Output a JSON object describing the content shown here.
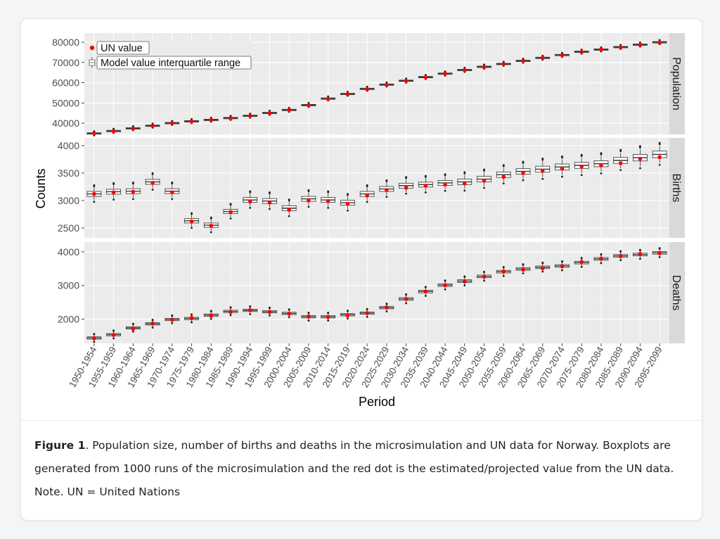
{
  "caption": {
    "label": "Figure 1",
    "text": ". Population size, number of births and deaths in the microsimulation and UN data for Norway. Boxplots are generated from 1000 runs of the microsimulation and the red dot is the estimated/projected value from the UN data. Note. UN = United Nations"
  },
  "colors": {
    "panel": "#ebebeb",
    "grid": "#ffffff",
    "strip": "#d9d9d9",
    "dot": "#ff0000",
    "box": "#333333",
    "outlier": "#222222"
  },
  "chart_data": {
    "type": "boxplot",
    "xlabel": "Period",
    "ylabel": "Counts",
    "legend": {
      "placement": "top-left",
      "items": [
        "UN value",
        "Model value interquartile range"
      ]
    },
    "categories": [
      "1950-1954",
      "1955-1959",
      "1960-1964",
      "1965-1969",
      "1970-1974",
      "1975-1979",
      "1980-1984",
      "1985-1989",
      "1990-1994",
      "1995-1999",
      "2000-2004",
      "2005-2009",
      "2010-2014",
      "2015-2019",
      "2020-2024",
      "2025-2029",
      "2030-2034",
      "2035-2039",
      "2040-2044",
      "2045-2049",
      "2050-2054",
      "2055-2059",
      "2060-2064",
      "2065-2069",
      "2070-2074",
      "2075-2079",
      "2080-2084",
      "2085-2089",
      "2090-2094",
      "2095-2099"
    ],
    "panels": [
      {
        "name": "Population",
        "ylim": [
          34500,
          84500
        ],
        "yticks": [
          40000,
          50000,
          60000,
          70000,
          80000
        ],
        "medians": [
          35000,
          36200,
          37500,
          38800,
          40100,
          41000,
          41700,
          42600,
          43700,
          45100,
          46600,
          49000,
          52200,
          54500,
          57000,
          59100,
          61000,
          62800,
          64500,
          66300,
          67900,
          69300,
          70800,
          72300,
          73700,
          75300,
          76400,
          77600,
          78800,
          80000
        ],
        "spread": [
          300,
          300,
          300,
          300,
          300,
          300,
          300,
          300,
          300,
          300,
          300,
          300,
          300,
          300,
          300,
          300,
          300,
          300,
          300,
          300,
          300,
          300,
          300,
          300,
          300,
          300,
          300,
          300,
          300,
          300
        ],
        "un_values": [
          35000,
          36000,
          37400,
          38700,
          40000,
          40900,
          41600,
          42400,
          43600,
          44900,
          46600,
          48800,
          52000,
          54300,
          56800,
          58900,
          60900,
          62600,
          64500,
          66200,
          67700,
          69200,
          70800,
          72300,
          73600,
          75100,
          76400,
          77400,
          78600,
          79700
        ]
      },
      {
        "name": "Births",
        "ylim": [
          2320,
          4140
        ],
        "yticks": [
          2500,
          3000,
          3500,
          4000
        ],
        "medians": [
          3120,
          3160,
          3170,
          3340,
          3170,
          2630,
          2550,
          2800,
          3010,
          2990,
          2860,
          3030,
          3010,
          2960,
          3120,
          3210,
          3270,
          3290,
          3320,
          3340,
          3390,
          3470,
          3530,
          3570,
          3610,
          3640,
          3670,
          3730,
          3780,
          3840
        ],
        "spread": [
          45,
          45,
          45,
          45,
          45,
          40,
          40,
          40,
          45,
          45,
          45,
          45,
          45,
          45,
          45,
          45,
          45,
          45,
          45,
          50,
          50,
          50,
          50,
          55,
          55,
          55,
          55,
          55,
          60,
          60
        ],
        "un_values": [
          3120,
          3150,
          3160,
          3320,
          3150,
          2620,
          2540,
          2790,
          2980,
          2960,
          2830,
          3000,
          2990,
          2940,
          3090,
          3190,
          3230,
          3270,
          3290,
          3310,
          3360,
          3430,
          3500,
          3540,
          3580,
          3620,
          3640,
          3680,
          3760,
          3790
        ]
      },
      {
        "name": "Deaths",
        "ylim": [
          1280,
          4290
        ],
        "yticks": [
          2000,
          3000,
          4000
        ],
        "medians": [
          1440,
          1540,
          1740,
          1860,
          1990,
          2020,
          2120,
          2230,
          2260,
          2220,
          2170,
          2070,
          2070,
          2130,
          2180,
          2340,
          2600,
          2820,
          3010,
          3130,
          3270,
          3410,
          3490,
          3540,
          3580,
          3680,
          3790,
          3880,
          3920,
          3970
        ],
        "spread": [
          35,
          35,
          35,
          35,
          35,
          35,
          35,
          35,
          35,
          35,
          35,
          35,
          35,
          35,
          35,
          35,
          40,
          40,
          40,
          40,
          40,
          40,
          40,
          40,
          40,
          40,
          40,
          40,
          40,
          40
        ],
        "un_values": [
          1430,
          1530,
          1710,
          1870,
          1980,
          2040,
          2100,
          2210,
          2270,
          2210,
          2160,
          2080,
          2060,
          2110,
          2180,
          2350,
          2600,
          2820,
          3010,
          3120,
          3260,
          3420,
          3470,
          3510,
          3570,
          3700,
          3800,
          3870,
          3940,
          3960
        ]
      }
    ]
  }
}
